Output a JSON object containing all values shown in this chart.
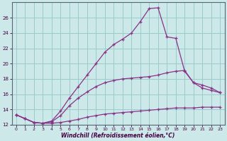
{
  "xlabel": "Windchill (Refroidissement éolien,°C)",
  "background_color": "#cce8e8",
  "grid_color": "#99cccc",
  "line_color": "#883388",
  "xlim": [
    -0.5,
    23.5
  ],
  "ylim": [
    12,
    28
  ],
  "yticks": [
    12,
    14,
    16,
    18,
    20,
    22,
    24,
    26
  ],
  "xticks": [
    0,
    1,
    2,
    3,
    4,
    5,
    6,
    7,
    8,
    9,
    10,
    11,
    12,
    13,
    14,
    15,
    16,
    17,
    18,
    19,
    20,
    21,
    22,
    23
  ],
  "series": [
    {
      "x": [
        0,
        1,
        2,
        3,
        4,
        5,
        6,
        7,
        8,
        9,
        10,
        11,
        12,
        13,
        14,
        15,
        16,
        17,
        18,
        19,
        20,
        21,
        22,
        23
      ],
      "y": [
        13.3,
        12.8,
        12.3,
        12.2,
        12.2,
        12.3,
        12.5,
        12.7,
        13.0,
        13.2,
        13.4,
        13.5,
        13.6,
        13.7,
        13.8,
        13.9,
        14.0,
        14.1,
        14.2,
        14.2,
        14.2,
        14.3,
        14.3,
        14.3
      ]
    },
    {
      "x": [
        0,
        1,
        2,
        3,
        4,
        5,
        6,
        7,
        8,
        9,
        10,
        11,
        12,
        13,
        14,
        15,
        16,
        17,
        18,
        19,
        20,
        21,
        22,
        23
      ],
      "y": [
        13.3,
        12.8,
        12.3,
        12.2,
        12.4,
        13.2,
        14.5,
        15.5,
        16.3,
        17.0,
        17.5,
        17.8,
        18.0,
        18.1,
        18.2,
        18.3,
        18.5,
        18.8,
        19.0,
        19.1,
        17.5,
        16.8,
        16.5,
        16.2
      ]
    },
    {
      "x": [
        0,
        1,
        2,
        3,
        4,
        5,
        6,
        7,
        8,
        9,
        10,
        11,
        12,
        13,
        14,
        15,
        16,
        17,
        18,
        19,
        20,
        21,
        22,
        23
      ],
      "y": [
        13.3,
        12.8,
        12.3,
        12.2,
        12.5,
        13.8,
        15.5,
        17.0,
        18.5,
        20.0,
        21.5,
        22.5,
        23.2,
        24.0,
        25.5,
        27.2,
        27.3,
        23.5,
        23.3,
        19.0,
        17.5,
        17.2,
        16.8,
        16.2
      ]
    }
  ]
}
